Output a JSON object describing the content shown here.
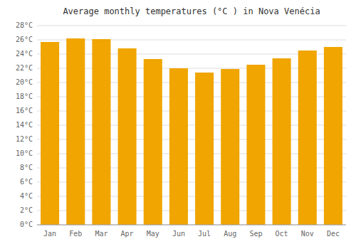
{
  "chart_data": {
    "type": "bar",
    "title": "Average monthly temperatures (°C ) in Nova Venécia",
    "categories": [
      "Jan",
      "Feb",
      "Mar",
      "Apr",
      "May",
      "Jun",
      "Jul",
      "Aug",
      "Sep",
      "Oct",
      "Nov",
      "Dec"
    ],
    "values": [
      25.7,
      26.2,
      26.1,
      24.8,
      23.3,
      22.0,
      21.4,
      21.9,
      22.5,
      23.4,
      24.5,
      25.0
    ],
    "color": "#F0A500",
    "ylim": [
      0,
      28
    ],
    "yticks": [
      {
        "value": 0,
        "label": "0°C"
      },
      {
        "value": 2,
        "label": "2°C"
      },
      {
        "value": 4,
        "label": "4°C"
      },
      {
        "value": 6,
        "label": "6°C"
      },
      {
        "value": 8,
        "label": "8°C"
      },
      {
        "value": 10,
        "label": "10°C"
      },
      {
        "value": 12,
        "label": "12°C"
      },
      {
        "value": 14,
        "label": "14°C"
      },
      {
        "value": 16,
        "label": "16°C"
      },
      {
        "value": 18,
        "label": "18°C"
      },
      {
        "value": 20,
        "label": "20°C"
      },
      {
        "value": 22,
        "label": "22°C"
      },
      {
        "value": 24,
        "label": "24°C"
      },
      {
        "value": 26,
        "label": "26°C"
      },
      {
        "value": 28,
        "label": "28°C"
      }
    ],
    "grid": true
  }
}
